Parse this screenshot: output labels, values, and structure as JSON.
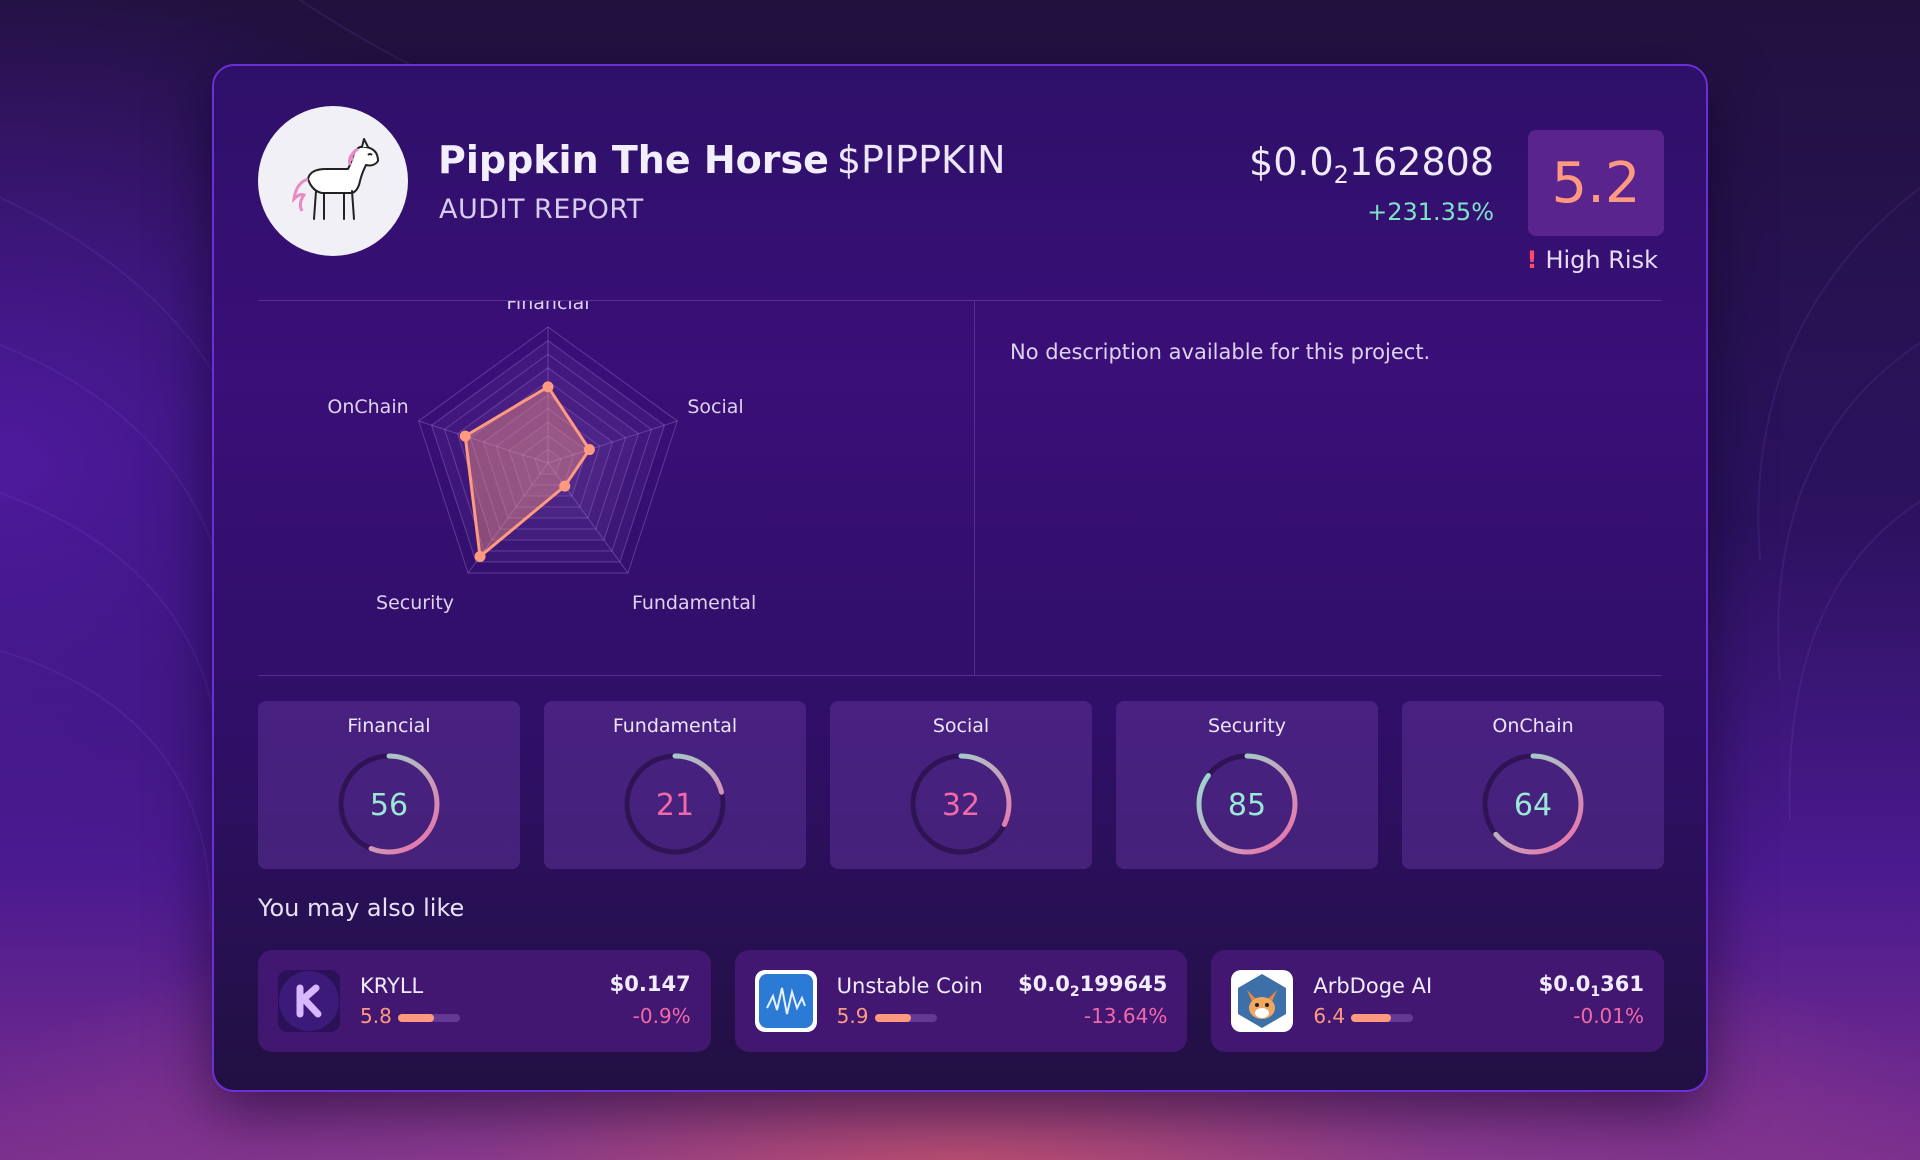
{
  "project": {
    "name": "Pippkin The Horse",
    "ticker": "$PIPPKIN",
    "subtitle": "AUDIT REPORT",
    "price_main": "$0.0",
    "price_sub": "2",
    "price_rest": "162808",
    "change": "+231.35%",
    "score": "5.2",
    "risk_icon": "!",
    "risk_label": "High Risk",
    "description": "No description available for this project."
  },
  "radar": {
    "axes": [
      "Financial",
      "Social",
      "Fundamental",
      "Security",
      "OnChain"
    ],
    "values": [
      56,
      32,
      21,
      85,
      64
    ],
    "max": 100
  },
  "scores": [
    {
      "label": "Financial",
      "value": 56,
      "value_color": "#9be8d6"
    },
    {
      "label": "Fundamental",
      "value": 21,
      "value_color": "#f06aa8"
    },
    {
      "label": "Social",
      "value": 32,
      "value_color": "#f06aa8"
    },
    {
      "label": "Security",
      "value": 85,
      "value_color": "#9be8d6"
    },
    {
      "label": "OnChain",
      "value": 64,
      "value_color": "#9be8d6"
    }
  ],
  "also_like_title": "You may also like",
  "recommendations": [
    {
      "name": "KRYLL",
      "score": "5.8",
      "score_fraction": 0.58,
      "price_main": "$0.147",
      "price_sub": "",
      "price_rest": "",
      "change": "-0.9%",
      "icon": "kryll-logo-icon"
    },
    {
      "name": "Unstable Coin",
      "score": "5.9",
      "score_fraction": 0.59,
      "price_main": "$0.0",
      "price_sub": "2",
      "price_rest": "199645",
      "change": "-13.64%",
      "icon": "unstable-coin-logo-icon"
    },
    {
      "name": "ArbDoge AI",
      "score": "6.4",
      "score_fraction": 0.64,
      "price_main": "$0.0",
      "price_sub": "1",
      "price_rest": "361",
      "change": "-0.01%",
      "icon": "arbdoge-logo-icon"
    }
  ],
  "colors": {
    "accent_orange": "#ff9a80",
    "accent_teal": "#7fe3c8",
    "accent_pink": "#f06aa8",
    "risk_red": "#ff4a6a"
  }
}
